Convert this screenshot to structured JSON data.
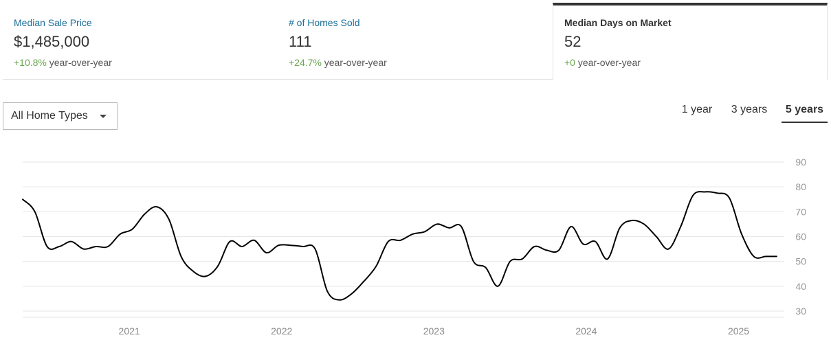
{
  "stats": [
    {
      "label": "Median Sale Price",
      "value": "$1,485,000",
      "change": "+10.8%",
      "change_suffix": "year-over-year",
      "active": false
    },
    {
      "label": "# of Homes Sold",
      "value": "111",
      "change": "+24.7%",
      "change_suffix": "year-over-year",
      "active": false
    },
    {
      "label": "Median Days on Market",
      "value": "52",
      "change": "+0",
      "change_suffix": "year-over-year",
      "active": true
    }
  ],
  "filter": {
    "selected": "All Home Types"
  },
  "ranges": [
    {
      "label": "1 year",
      "active": false
    },
    {
      "label": "3 years",
      "active": false
    },
    {
      "label": "5 years",
      "active": true
    }
  ],
  "colors": {
    "line": "#000000",
    "grid": "#e6e6e6",
    "positive": "#6aa84f",
    "link": "#1a6e9a"
  },
  "chart_data": {
    "type": "line",
    "title": "",
    "xlabel": "",
    "ylabel": "",
    "ylim": [
      30,
      90
    ],
    "xlim": [
      2020.3,
      2025.3
    ],
    "yticks": [
      30,
      40,
      50,
      60,
      70,
      80,
      90
    ],
    "xticks": [
      {
        "value": 2021,
        "label": "2021"
      },
      {
        "value": 2022,
        "label": "2022"
      },
      {
        "value": 2023,
        "label": "2023"
      },
      {
        "value": 2024,
        "label": "2024"
      },
      {
        "value": 2025,
        "label": "2025"
      }
    ],
    "grid": true,
    "series": [
      {
        "x": [
          2020.3,
          2020.38,
          2020.46,
          2020.54,
          2020.62,
          2020.7,
          2020.78,
          2020.86,
          2020.94,
          2021.02,
          2021.1,
          2021.18,
          2021.26,
          2021.34,
          2021.42,
          2021.5,
          2021.58,
          2021.66,
          2021.74,
          2021.82,
          2021.9,
          2021.98,
          2022.06,
          2022.14,
          2022.22,
          2022.3,
          2022.38,
          2022.46,
          2022.54,
          2022.62,
          2022.7,
          2022.78,
          2022.86,
          2022.94,
          2023.02,
          2023.1,
          2023.18,
          2023.26,
          2023.34,
          2023.42,
          2023.5,
          2023.58,
          2023.66,
          2023.74,
          2023.82,
          2023.9,
          2023.98,
          2024.06,
          2024.14,
          2024.22,
          2024.3,
          2024.38,
          2024.46,
          2024.54,
          2024.62,
          2024.7,
          2024.78,
          2024.86,
          2024.94,
          2025.02,
          2025.1,
          2025.18,
          2025.25
        ],
        "values": [
          75,
          70,
          56,
          56,
          58,
          55,
          56,
          56,
          61,
          63,
          69,
          72,
          67,
          52,
          46,
          44,
          48,
          58,
          56,
          58.5,
          53.5,
          56.5,
          56.5,
          56,
          55,
          38,
          34.5,
          37,
          42,
          48,
          58,
          58.5,
          61,
          62,
          65,
          63.5,
          64,
          50,
          47.5,
          40,
          50,
          51,
          56,
          54.5,
          54.5,
          64,
          57,
          58,
          51,
          63.5,
          66.5,
          65,
          60,
          55,
          64,
          76.5,
          78,
          77.5,
          75.5,
          61,
          52,
          52,
          52
        ]
      }
    ]
  }
}
